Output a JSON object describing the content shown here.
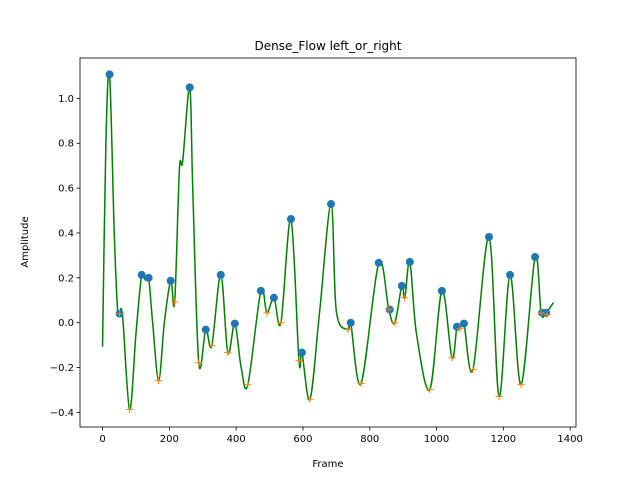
{
  "chart_data": {
    "type": "line",
    "title": "Dense_Flow left_or_right",
    "x_label": "Frame",
    "y_label": "Amplitude",
    "xlim": [
      -67.5,
      1417.5
    ],
    "ylim": [
      -0.465,
      1.18
    ],
    "xticks": [
      0,
      200,
      400,
      600,
      800,
      1000,
      1200,
      1400
    ],
    "yticks": [
      {
        "value": -0.4,
        "label": "−0.4"
      },
      {
        "value": -0.2,
        "label": "−0.2"
      },
      {
        "value": 0,
        "label": "0.0"
      },
      0.2,
      0.4,
      0.6,
      0.8,
      {
        "value": 1,
        "label": "1.0"
      }
    ],
    "line": {
      "color": "#008000",
      "x": [
        0,
        10,
        21,
        35,
        45,
        51,
        60,
        81,
        100,
        117,
        128,
        138,
        150,
        168,
        185,
        204,
        216,
        230,
        240,
        261,
        270,
        288,
        309,
        327,
        354,
        375,
        396,
        415,
        435,
        474,
        492,
        513,
        534,
        564,
        588,
        597,
        621,
        650,
        684,
        700,
        735,
        743,
        774,
        827,
        857,
        875,
        896,
        905,
        920,
        940,
        980,
        1016,
        1046,
        1061,
        1070,
        1082,
        1109,
        1157,
        1187,
        1220,
        1253,
        1295,
        1313,
        1328,
        1350
      ],
      "values": [
        -0.107,
        0.8,
        1.107,
        0.4,
        0.06,
        0.04,
        0.03,
        -0.387,
        -0.05,
        0.213,
        0.19,
        0.2,
        0.0,
        -0.258,
        0.0,
        0.187,
        0.093,
        0.68,
        0.72,
        1.049,
        0.6,
        -0.178,
        -0.031,
        -0.102,
        0.213,
        -0.133,
        -0.004,
        -0.2,
        -0.276,
        0.142,
        0.044,
        0.111,
        0.0,
        0.462,
        -0.169,
        -0.133,
        -0.342,
        0.05,
        0.529,
        0.05,
        -0.031,
        0.0,
        -0.271,
        0.267,
        0.058,
        0.0,
        0.164,
        0.111,
        0.271,
        -0.05,
        -0.298,
        0.142,
        -0.156,
        -0.018,
        -0.027,
        -0.004,
        -0.209,
        0.382,
        -0.329,
        0.213,
        -0.276,
        0.293,
        0.044,
        0.044,
        0.09
      ]
    },
    "peaks": {
      "color": "#1f77b4",
      "x": [
        21,
        51,
        117,
        138,
        204,
        261,
        309,
        354,
        396,
        474,
        513,
        564,
        597,
        684,
        743,
        827,
        860,
        896,
        920,
        1016,
        1061,
        1082,
        1157,
        1220,
        1295,
        1316,
        1328
      ],
      "values": [
        1.107,
        0.04,
        0.213,
        0.2,
        0.187,
        1.049,
        -0.031,
        0.213,
        -0.004,
        0.142,
        0.111,
        0.462,
        -0.133,
        0.529,
        0.0,
        0.267,
        0.058,
        0.164,
        0.271,
        0.142,
        -0.018,
        -0.004,
        0.382,
        0.213,
        0.293,
        0.044,
        0.044
      ]
    },
    "troughs": {
      "color": "#ff7f0e",
      "x": [
        51,
        81,
        168,
        216,
        288,
        327,
        375,
        435,
        492,
        534,
        588,
        621,
        735,
        774,
        857,
        875,
        905,
        980,
        1046,
        1070,
        1109,
        1187,
        1253,
        1313,
        1331
      ],
      "values": [
        0.04,
        -0.387,
        -0.258,
        0.093,
        -0.178,
        -0.102,
        -0.133,
        -0.276,
        0.044,
        0.0,
        -0.169,
        -0.342,
        -0.031,
        -0.271,
        0.058,
        0.0,
        0.111,
        -0.298,
        -0.156,
        -0.027,
        -0.209,
        -0.329,
        -0.276,
        0.044,
        0.036
      ]
    }
  }
}
